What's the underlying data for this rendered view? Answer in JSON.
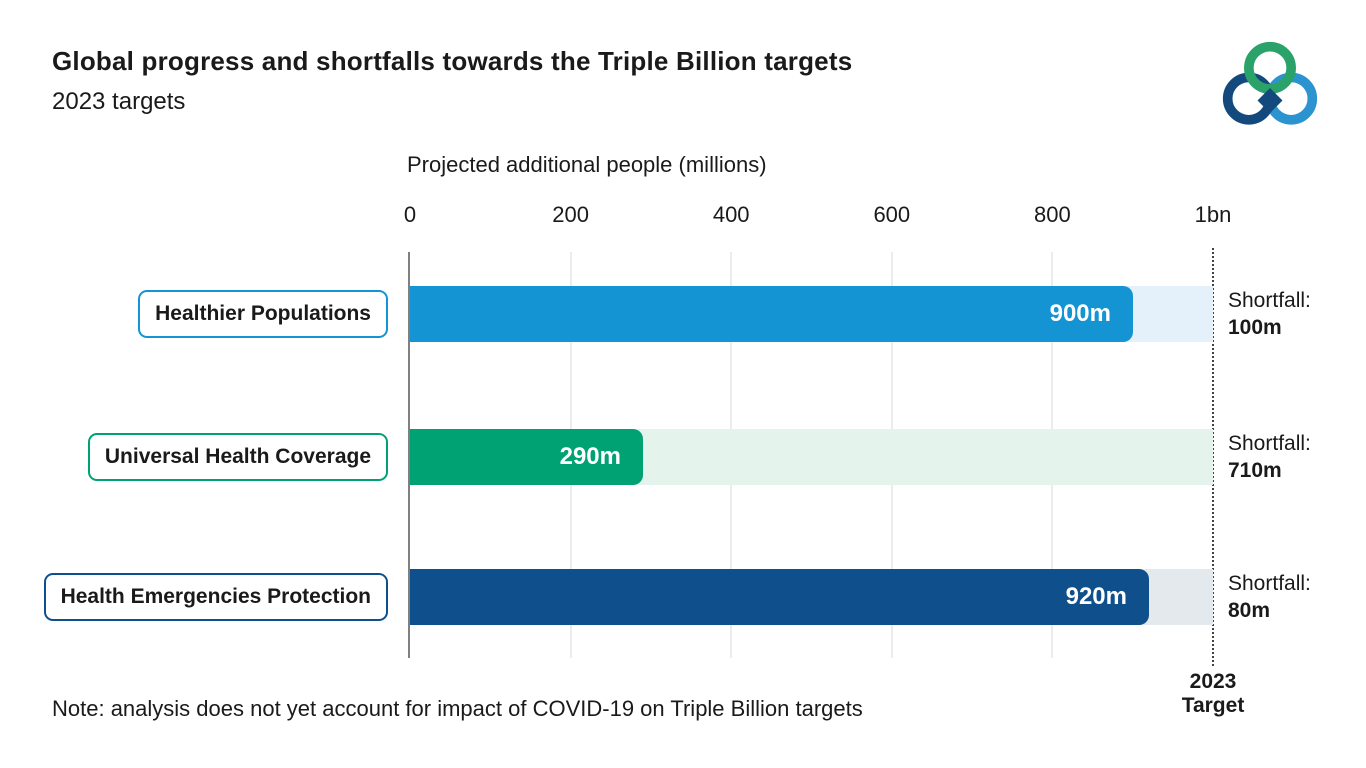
{
  "header": {
    "title": "Global progress and shortfalls towards the Triple Billion targets",
    "subtitle": "2023 targets"
  },
  "logo": {
    "name": "triple-billion-logo",
    "colors": {
      "green": "#2aa269",
      "dark_blue": "#14497e",
      "light_blue": "#2a93d0"
    }
  },
  "chart_data": {
    "type": "bar",
    "orientation": "horizontal",
    "axis_title": "Projected additional people (millions)",
    "xlim": [
      0,
      1000
    ],
    "grid": true,
    "ticks": [
      {
        "label": "0",
        "value": 0
      },
      {
        "label": "200",
        "value": 200
      },
      {
        "label": "400",
        "value": 400
      },
      {
        "label": "600",
        "value": 600
      },
      {
        "label": "800",
        "value": 800
      },
      {
        "label": "1bn",
        "value": 1000
      }
    ],
    "categories": [
      "Healthier Populations",
      "Universal Health Coverage",
      "Health Emergencies Protection"
    ],
    "values": [
      900,
      290,
      920
    ],
    "shortfalls": [
      100,
      710,
      80
    ],
    "rows": [
      {
        "label": "Healthier Populations",
        "value": 900,
        "value_label": "900m",
        "shortfall_title": "Shortfall:",
        "shortfall_value": "100m",
        "bar_color": "#1494d2",
        "track_color": "#e4f1fa"
      },
      {
        "label": "Universal Health Coverage",
        "value": 290,
        "value_label": "290m",
        "shortfall_title": "Shortfall:",
        "shortfall_value": "710m",
        "bar_color": "#00a173",
        "track_color": "#e4f3ec"
      },
      {
        "label": "Health Emergencies Protection",
        "value": 920,
        "value_label": "920m",
        "shortfall_title": "Shortfall:",
        "shortfall_value": "80m",
        "bar_color": "#0f508c",
        "track_color": "#e4e9ee"
      }
    ],
    "target": {
      "line1": "2023",
      "line2": "Target",
      "value": 1000
    },
    "note": "Note: analysis does not yet account for impact of COVID-19 on Triple Billion targets"
  }
}
